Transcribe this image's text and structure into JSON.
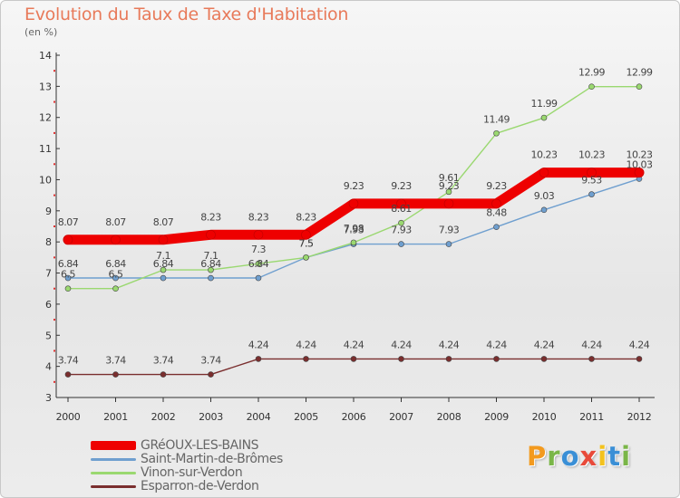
{
  "page": {
    "title": "Evolution du Taux de Taxe d'Habitation",
    "subtitle": "(en %)"
  },
  "logo": {
    "text": "Proxiti",
    "colors": [
      "#f39a1e",
      "#7ab648",
      "#3a8fd6",
      "#e84a3a",
      "#f3c21e",
      "#3a8fd6",
      "#7ab648"
    ]
  },
  "chart_data": {
    "type": "line",
    "x": [
      "2000",
      "2001",
      "2002",
      "2003",
      "2004",
      "2005",
      "2006",
      "2007",
      "2008",
      "2009",
      "2010",
      "2011",
      "2012"
    ],
    "ylim": [
      3,
      14
    ],
    "yticks": [
      3,
      4,
      5,
      6,
      7,
      8,
      9,
      10,
      11,
      12,
      13,
      14
    ],
    "grid": false,
    "legend_position": "bottom-left",
    "series": [
      {
        "name": "GRéOUX-LES-BAINS",
        "color": "#ee0000",
        "values": [
          8.07,
          8.07,
          8.07,
          8.23,
          8.23,
          8.23,
          9.23,
          9.23,
          9.23,
          9.23,
          10.23,
          10.23,
          10.23
        ],
        "labels": [
          "8.07",
          "8.07",
          "8.07",
          "8.23",
          "8.23",
          "8.23",
          "9.23",
          "9.23",
          "9.23",
          "9.23",
          "10.23",
          "10.23",
          "10.23"
        ]
      },
      {
        "name": "Saint-Martin-de-Brômes",
        "color": "#6f9fcf",
        "values": [
          6.84,
          6.84,
          6.84,
          6.84,
          6.84,
          7.5,
          7.93,
          7.93,
          7.93,
          8.48,
          9.03,
          9.53,
          10.03
        ],
        "labels": [
          "6.84",
          "6.84",
          "6.84",
          "6.84",
          "6.84",
          "7.5",
          "7.93",
          "7.93",
          "7.93",
          "8.48",
          "9.03",
          "9.53",
          "10.03"
        ]
      },
      {
        "name": "Vinon-sur-Verdon",
        "color": "#9ad870",
        "values": [
          6.5,
          6.5,
          7.1,
          7.1,
          7.3,
          7.5,
          7.98,
          8.61,
          9.61,
          11.49,
          11.99,
          12.99,
          12.99
        ],
        "labels": [
          "6.5",
          "6.5",
          "7.1",
          "7.1",
          "7.3",
          "7.5",
          "7.98",
          "8.61",
          "9.61",
          "11.49",
          "11.99",
          "12.99",
          "12.99"
        ]
      },
      {
        "name": "Esparron-de-Verdon",
        "color": "#7a2e2e",
        "values": [
          3.74,
          3.74,
          3.74,
          3.74,
          4.24,
          4.24,
          4.24,
          4.24,
          4.24,
          4.24,
          4.24,
          4.24,
          4.24
        ],
        "labels": [
          "3.74",
          "3.74",
          "3.74",
          "3.74",
          "4.24",
          "4.24",
          "4.24",
          "4.24",
          "4.24",
          "4.24",
          "4.24",
          "4.24",
          "4.24"
        ]
      }
    ]
  }
}
